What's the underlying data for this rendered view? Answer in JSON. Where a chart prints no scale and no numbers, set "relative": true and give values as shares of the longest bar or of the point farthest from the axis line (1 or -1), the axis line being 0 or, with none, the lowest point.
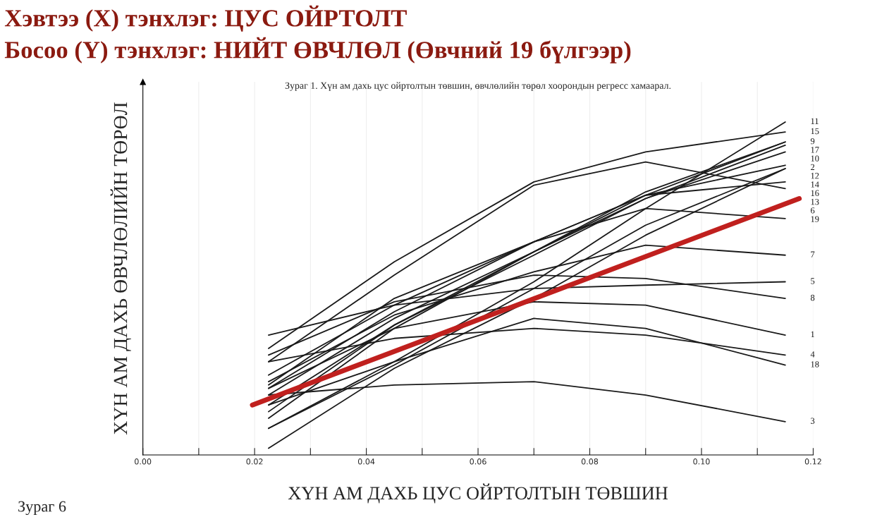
{
  "chart_data": {
    "type": "line",
    "relative": true,
    "title": "Хэвтээ (X) тэнхлэг: ЦУС ОЙРТОЛТ",
    "subtitle": "Босоо (Y) тэнхлэг: НИЙТ ӨВЧЛӨЛ (Өвчний 19 бүлгээр)",
    "xlabel": "ХҮН АМ ДАХЬ ЦУС ОЙРТОЛТЫН ТӨВШИН",
    "ylabel": "ХҮН АМ ДАХЬ ӨВЧЛӨЛИЙН ТӨРӨЛ",
    "annotations": [
      "Зураг 1. Хүн ам дахь цус ойртолтын төвшин, өвчлөлийн төрөл хоорондын регресс хамаарал.",
      "Зураг 6"
    ],
    "x": [
      0.0225,
      0.045,
      0.07,
      0.09,
      0.115
    ],
    "xlim": [
      0,
      0.12
    ],
    "xticks": [
      {
        "value": 0,
        "label": "0.00"
      },
      {
        "value": 0.01,
        "label": null
      },
      {
        "value": 0.02,
        "label": "0.02"
      },
      {
        "value": 0.03,
        "label": null
      },
      {
        "value": 0.04,
        "label": "0.04"
      },
      {
        "value": 0.05,
        "label": null
      },
      {
        "value": 0.06,
        "label": "0.06"
      },
      {
        "value": 0.07,
        "label": null
      },
      {
        "value": 0.08,
        "label": "0.08"
      },
      {
        "value": 0.09,
        "label": null
      },
      {
        "value": 0.1,
        "label": "0.10"
      },
      {
        "value": 0.11,
        "label": null
      },
      {
        "value": 0.12,
        "label": "0.12"
      }
    ],
    "grid": "x",
    "series": [
      {
        "name": "11",
        "color": "#1a1a1a",
        "values": [
          0.08,
          0.28,
          0.52,
          0.74,
          1.0
        ]
      },
      {
        "name": "15",
        "color": "#1a1a1a",
        "values": [
          0.32,
          0.58,
          0.82,
          0.91,
          0.97
        ]
      },
      {
        "name": "9",
        "color": "#1a1a1a",
        "values": [
          0.13,
          0.39,
          0.61,
          0.78,
          0.94
        ]
      },
      {
        "name": "17",
        "color": "#1a1a1a",
        "values": [
          0.11,
          0.38,
          0.61,
          0.79,
          0.94
        ]
      },
      {
        "name": "10",
        "color": "#1a1a1a",
        "values": [
          0.15,
          0.39,
          0.6,
          0.77,
          0.93
        ]
      },
      {
        "name": "2",
        "color": "#1a1a1a",
        "values": [
          0.18,
          0.41,
          0.61,
          0.77,
          0.91
        ]
      },
      {
        "name": "12",
        "color": "#1a1a1a",
        "values": [
          0.2,
          0.43,
          0.64,
          0.78,
          0.87
        ]
      },
      {
        "name": "14",
        "color": "#1a1a1a",
        "values": [
          0.02,
          0.26,
          0.47,
          0.66,
          0.86
        ]
      },
      {
        "name": "16",
        "color": "#1a1a1a",
        "values": [
          0.08,
          0.27,
          0.5,
          0.69,
          0.86
        ]
      },
      {
        "name": "13",
        "color": "#1a1a1a",
        "values": [
          0.21,
          0.47,
          0.64,
          0.78,
          0.82
        ]
      },
      {
        "name": "6",
        "color": "#1a1a1a",
        "values": [
          0.28,
          0.54,
          0.81,
          0.88,
          0.8
        ]
      },
      {
        "name": "19",
        "color": "#1a1a1a",
        "values": [
          0.24,
          0.45,
          0.64,
          0.74,
          0.71
        ]
      },
      {
        "name": "7",
        "color": "#1a1a1a",
        "values": [
          0.22,
          0.42,
          0.55,
          0.63,
          0.6
        ]
      },
      {
        "name": "5",
        "color": "#1a1a1a",
        "values": [
          0.36,
          0.45,
          0.5,
          0.51,
          0.52
        ]
      },
      {
        "name": "8",
        "color": "#1a1a1a",
        "values": [
          0.3,
          0.46,
          0.54,
          0.53,
          0.47
        ]
      },
      {
        "name": "1",
        "color": "#1a1a1a",
        "values": [
          0.2,
          0.38,
          0.46,
          0.45,
          0.36
        ]
      },
      {
        "name": "4",
        "color": "#1a1a1a",
        "values": [
          0.28,
          0.35,
          0.38,
          0.36,
          0.3
        ]
      },
      {
        "name": "18",
        "color": "#1a1a1a",
        "values": [
          0.15,
          0.28,
          0.41,
          0.38,
          0.27
        ]
      },
      {
        "name": "3",
        "color": "#1a1a1a",
        "values": [
          0.18,
          0.21,
          0.22,
          0.18,
          0.1
        ]
      },
      {
        "color": "#c0201e",
        "x": [
          0.0196,
          0.1175
        ],
        "values": [
          0.15,
          0.77
        ]
      }
    ]
  }
}
